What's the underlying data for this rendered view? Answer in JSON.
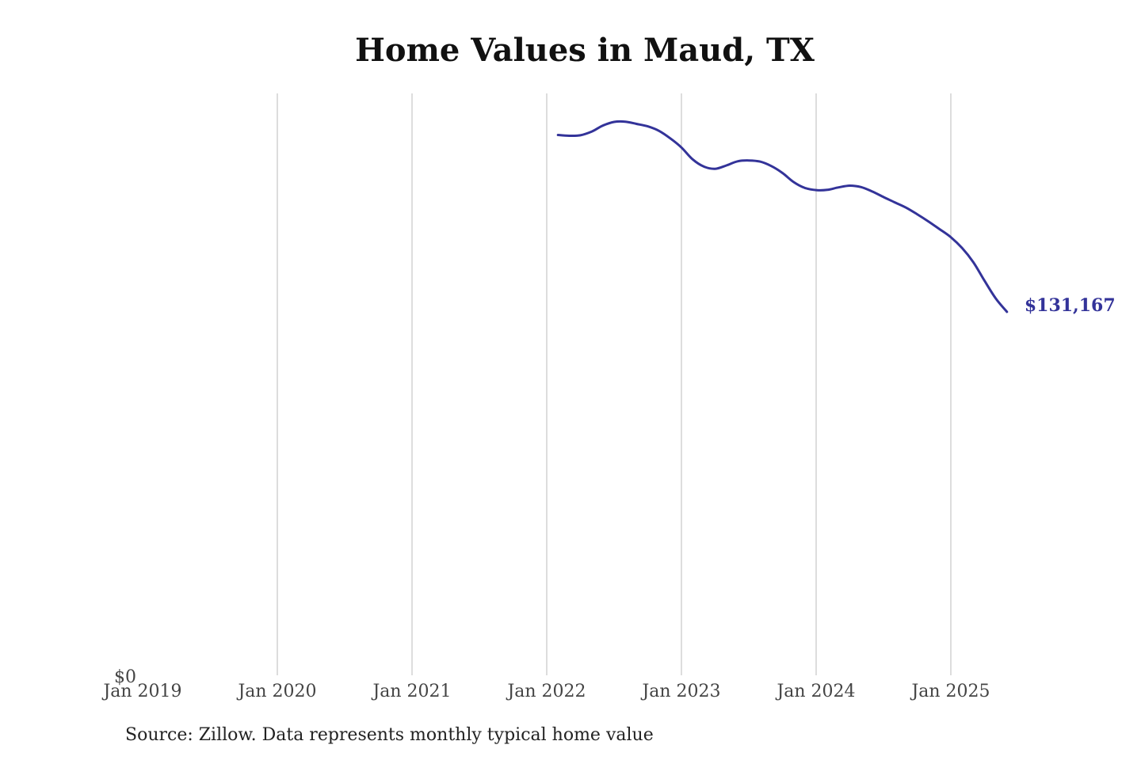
{
  "chart_data": {
    "type": "line",
    "title": "Home Values in Maud, TX",
    "xlabel": "",
    "ylabel": "",
    "x_ticks": [
      "Jan 2019",
      "Jan 2020",
      "Jan 2021",
      "Jan 2022",
      "Jan 2023",
      "Jan 2024",
      "Jan 2025"
    ],
    "y_ticks": [
      "$0"
    ],
    "xlim": [
      "2019-01",
      "2025-07"
    ],
    "ylim": [
      0,
      210000
    ],
    "grid": "vertical",
    "series": [
      {
        "color": "#333399",
        "x": [
          "2022-02",
          "2022-03",
          "2022-04",
          "2022-05",
          "2022-06",
          "2022-07",
          "2022-08",
          "2022-09",
          "2022-10",
          "2022-11",
          "2022-12",
          "2023-01",
          "2023-02",
          "2023-03",
          "2023-04",
          "2023-05",
          "2023-06",
          "2023-07",
          "2023-08",
          "2023-09",
          "2023-10",
          "2023-11",
          "2023-12",
          "2024-01",
          "2024-02",
          "2024-03",
          "2024-04",
          "2024-05",
          "2024-06",
          "2024-07",
          "2024-08",
          "2024-09",
          "2024-10",
          "2024-11",
          "2024-12",
          "2025-01",
          "2025-02",
          "2025-03",
          "2025-04",
          "2025-05",
          "2025-06"
        ],
        "values": [
          195000,
          194700,
          194900,
          196200,
          198400,
          199700,
          199800,
          199000,
          198100,
          196500,
          193800,
          190500,
          186200,
          183600,
          182800,
          184000,
          185500,
          185800,
          185400,
          183800,
          181300,
          178000,
          175900,
          175100,
          175200,
          176100,
          176700,
          176200,
          174600,
          172600,
          170700,
          168800,
          166400,
          163800,
          161000,
          158100,
          154200,
          149100,
          142400,
          136000,
          131167
        ]
      }
    ],
    "end_label": "$131,167",
    "source": "Source: Zillow. Data represents monthly typical home value"
  }
}
